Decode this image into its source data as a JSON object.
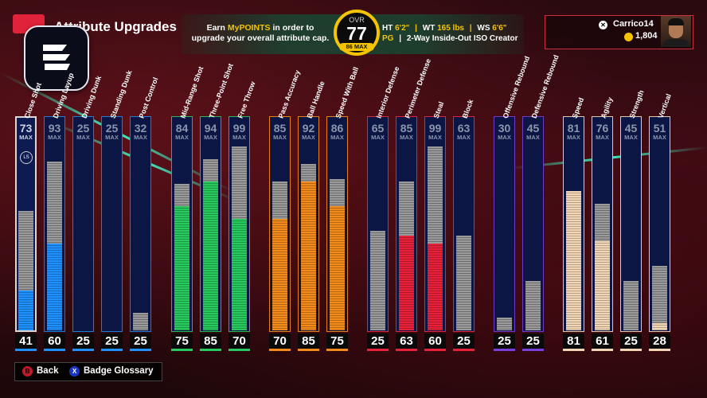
{
  "header": {
    "title": "Attribute Upgrades",
    "earn_prefix": "Earn ",
    "earn_highlight": "MyPOINTS",
    "earn_suffix": " in order to upgrade your overall attribute cap.",
    "ovr_label": "OVR",
    "ovr_value": "77",
    "ovr_max": "86 MAX",
    "ht_label": "HT",
    "ht_value": "6'2\"",
    "wt_label": "WT",
    "wt_value": "165 lbs",
    "ws_label": "WS",
    "ws_value": "6'6\"",
    "position": "PG",
    "archetype": "2-Way Inside-Out ISO Creator"
  },
  "profile": {
    "platform_icon": "xbox-icon",
    "gamertag": "Carrico14",
    "vc_icon": "vc-coin-icon",
    "vc_amount": "1,804"
  },
  "max_label": "MAX",
  "attributes": [
    {
      "name": "Close Shot",
      "max": 73,
      "current": 41,
      "group": "blue",
      "color": "#1e90ff"
    },
    {
      "name": "Driving Layup",
      "max": 93,
      "current": 60,
      "group": "blue",
      "color": "#1e90ff"
    },
    {
      "name": "Driving Dunk",
      "max": 25,
      "current": 25,
      "group": "blue",
      "color": "#1e90ff"
    },
    {
      "name": "Standing Dunk",
      "max": 25,
      "current": 25,
      "group": "blue",
      "color": "#1e90ff"
    },
    {
      "name": "Post Control",
      "max": 32,
      "current": 25,
      "group": "blue",
      "color": "#1e90ff"
    },
    {
      "name": "Mid-Range Shot",
      "max": 84,
      "current": 75,
      "group": "green",
      "color": "#27c95c"
    },
    {
      "name": "Three-Point Shot",
      "max": 94,
      "current": 85,
      "group": "green",
      "color": "#27c95c"
    },
    {
      "name": "Free Throw",
      "max": 99,
      "current": 70,
      "group": "green",
      "color": "#27c95c"
    },
    {
      "name": "Pass Accuracy",
      "max": 85,
      "current": 70,
      "group": "orange",
      "color": "#f28a1c"
    },
    {
      "name": "Ball Handle",
      "max": 92,
      "current": 85,
      "group": "orange",
      "color": "#f28a1c"
    },
    {
      "name": "Speed With Ball",
      "max": 86,
      "current": 75,
      "group": "orange",
      "color": "#f28a1c"
    },
    {
      "name": "Interior Defense",
      "max": 65,
      "current": 25,
      "group": "red",
      "color": "#e8213b"
    },
    {
      "name": "Perimeter Defense",
      "max": 85,
      "current": 63,
      "group": "red",
      "color": "#e8213b"
    },
    {
      "name": "Steal",
      "max": 99,
      "current": 60,
      "group": "red",
      "color": "#e8213b"
    },
    {
      "name": "Block",
      "max": 63,
      "current": 25,
      "group": "red",
      "color": "#e8213b"
    },
    {
      "name": "Offensive Rebound",
      "max": 30,
      "current": 25,
      "group": "purple",
      "color": "#7a3fd8"
    },
    {
      "name": "Defensive Rebound",
      "max": 45,
      "current": 25,
      "group": "purple",
      "color": "#7a3fd8"
    },
    {
      "name": "Speed",
      "max": 81,
      "current": 81,
      "group": "tan",
      "color": "#f1d5b5"
    },
    {
      "name": "Agility",
      "max": 76,
      "current": 61,
      "group": "tan",
      "color": "#f1d5b5"
    },
    {
      "name": "Strength",
      "max": 45,
      "current": 25,
      "group": "tan",
      "color": "#f1d5b5"
    },
    {
      "name": "Vertical",
      "max": 51,
      "current": 28,
      "group": "tan",
      "color": "#f1d5b5"
    }
  ],
  "selected_attribute": "Close Shot",
  "locked_badge": "LS",
  "footer": {
    "back_button_icon": "B",
    "back_label": "Back",
    "glossary_button_icon": "X",
    "glossary_label": "Badge Glossary"
  }
}
